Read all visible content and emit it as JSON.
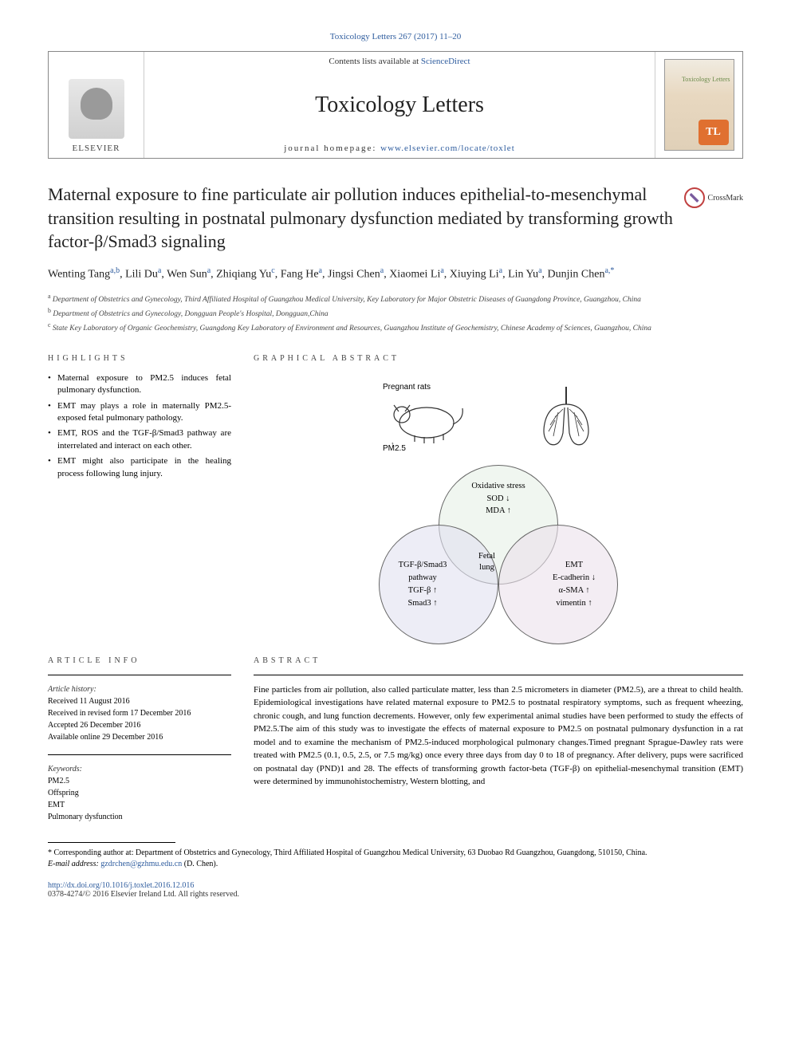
{
  "header": {
    "citation": "Toxicology Letters 267 (2017) 11–20",
    "contents_prefix": "Contents lists available at ",
    "contents_link": "ScienceDirect",
    "journal_name": "Toxicology Letters",
    "homepage_prefix": "journal homepage: ",
    "homepage_url": "www.elsevier.com/locate/toxlet",
    "publisher": "ELSEVIER",
    "cover_label": "Toxicology Letters",
    "cover_badge": "TL"
  },
  "crossmark": "CrossMark",
  "title": "Maternal exposure to fine particulate air pollution induces epithelial-to-mesenchymal transition resulting in postnatal pulmonary dysfunction mediated by transforming growth factor-β/Smad3 signaling",
  "authors_html": "Wenting Tang<sup>a,b</sup>, Lili Du<sup>a</sup>, Wen Sun<sup>a</sup>, Zhiqiang Yu<sup>c</sup>, Fang He<sup>a</sup>, Jingsi Chen<sup>a</sup>, Xiaomei Li<sup>a</sup>, Xiuying Li<sup>a</sup>, Lin Yu<sup>a</sup>, Dunjin Chen<sup>a,*</sup>",
  "affiliations": [
    {
      "key": "a",
      "text": "Department of Obstetrics and Gynecology, Third Affiliated Hospital of Guangzhou Medical University, Key Laboratory for Major Obstetric Diseases of Guangdong Province, Guangzhou, China"
    },
    {
      "key": "b",
      "text": "Department of Obstetrics and Gynecology, Dongguan People's Hospital, Dongguan,China"
    },
    {
      "key": "c",
      "text": "State Key Laboratory of Organic Geochemistry, Guangdong Key Laboratory of Environment and Resources, Guangzhou Institute of Geochemistry, Chinese Academy of Sciences, Guangzhou, China"
    }
  ],
  "sections": {
    "highlights_label": "HIGHLIGHTS",
    "graphical_label": "GRAPHICAL ABSTRACT",
    "article_info_label": "ARTICLE INFO",
    "abstract_label": "ABSTRACT"
  },
  "highlights": [
    "Maternal exposure to PM2.5 induces fetal pulmonary dysfunction.",
    "EMT may plays a role in maternally PM2.5-exposed fetal pulmonary pathology.",
    "EMT, ROS and the TGF-β/Smad3 pathway are interrelated and interact on each other.",
    "EMT might also participate in the healing process following lung injury."
  ],
  "graphical_abstract": {
    "labels": {
      "pregnant_rats": "Pregnant rats",
      "pm25": "PM2.5",
      "fetal_lung": "Fetal\nlung"
    },
    "venn_top": {
      "title": "Oxidative stress",
      "lines": [
        "SOD ↓",
        "MDA ↑"
      ]
    },
    "venn_left": {
      "title": "TGF-β/Smad3\npathway",
      "lines": [
        "TGF-β ↑",
        "Smad3 ↑"
      ]
    },
    "venn_right": {
      "title": "EMT",
      "lines": [
        "E-cadherin ↓",
        "α-SMA  ↑",
        "vimentin  ↑"
      ]
    },
    "colors": {
      "top_fill": "rgba(230,240,230,0.6)",
      "left_fill": "rgba(225,225,240,0.6)",
      "right_fill": "rgba(235,225,235,0.6)",
      "border": "#666666"
    }
  },
  "article_info": {
    "history_label": "Article history:",
    "history": [
      "Received 11 August 2016",
      "Received in revised form 17 December 2016",
      "Accepted 26 December 2016",
      "Available online 29 December 2016"
    ],
    "keywords_label": "Keywords:",
    "keywords": [
      "PM2.5",
      "Offspring",
      "EMT",
      "Pulmonary dysfunction"
    ]
  },
  "abstract": "Fine particles from air pollution, also called particulate matter, less than 2.5 micrometers in diameter (PM2.5), are a threat to child health. Epidemiological investigations have related maternal exposure to PM2.5 to postnatal respiratory symptoms, such as frequent wheezing, chronic cough, and lung function decrements. However, only few experimental animal studies have been performed to study the effects of PM2.5.The aim of this study was to investigate the effects of maternal exposure to PM2.5 on postnatal pulmonary dysfunction in a rat model and to examine the mechanism of PM2.5-induced morphological pulmonary changes.Timed pregnant Sprague-Dawley rats were treated with PM2.5 (0.1, 0.5, 2.5, or 7.5 mg/kg) once every three days from day 0 to 18 of pregnancy. After delivery, pups were sacrificed on postnatal day (PND)1 and 28. The effects of transforming growth factor-beta (TGF-β) on epithelial-mesenchymal transition (EMT) were determined by immunohistochemistry, Western blotting, and",
  "footnote": {
    "corresponding": "* Corresponding author at: Department of Obstetrics and Gynecology, Third Affiliated Hospital of Guangzhou Medical University, 63 Duobao Rd Guangzhou, Guangdong, 510150, China.",
    "email_label": "E-mail address: ",
    "email": "gzdrchen@gzhmu.edu.cn",
    "email_suffix": " (D. Chen)."
  },
  "doi": "http://dx.doi.org/10.1016/j.toxlet.2016.12.016",
  "copyright": "0378-4274/© 2016 Elsevier Ireland Ltd. All rights reserved."
}
